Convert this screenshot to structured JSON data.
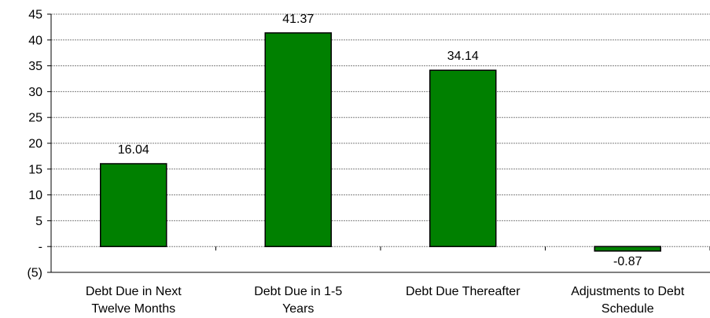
{
  "chart_data": {
    "type": "bar",
    "title": "",
    "xlabel": "",
    "ylabel": "",
    "categories": [
      [
        "Debt Due in Next",
        "Twelve Months"
      ],
      [
        "Debt Due in 1-5",
        "Years"
      ],
      [
        "Debt Due Thereafter"
      ],
      [
        "Adjustments to Debt",
        "Schedule"
      ]
    ],
    "values": [
      16.04,
      41.37,
      34.14,
      -0.87
    ],
    "data_labels": [
      "16.04",
      "41.37",
      "34.14",
      "-0.87"
    ],
    "ylim": [
      -5,
      45
    ],
    "yticks": [
      -5,
      0,
      5,
      10,
      15,
      20,
      25,
      30,
      35,
      40,
      45
    ],
    "ytick_labels": [
      "(5)",
      "-",
      "5",
      "10",
      "15",
      "20",
      "25",
      "30",
      "35",
      "40",
      "45"
    ],
    "grid": true,
    "legend": "none",
    "bar_color": "#008000",
    "bar_edge_color": "#000000",
    "grid_color": "#808080"
  }
}
